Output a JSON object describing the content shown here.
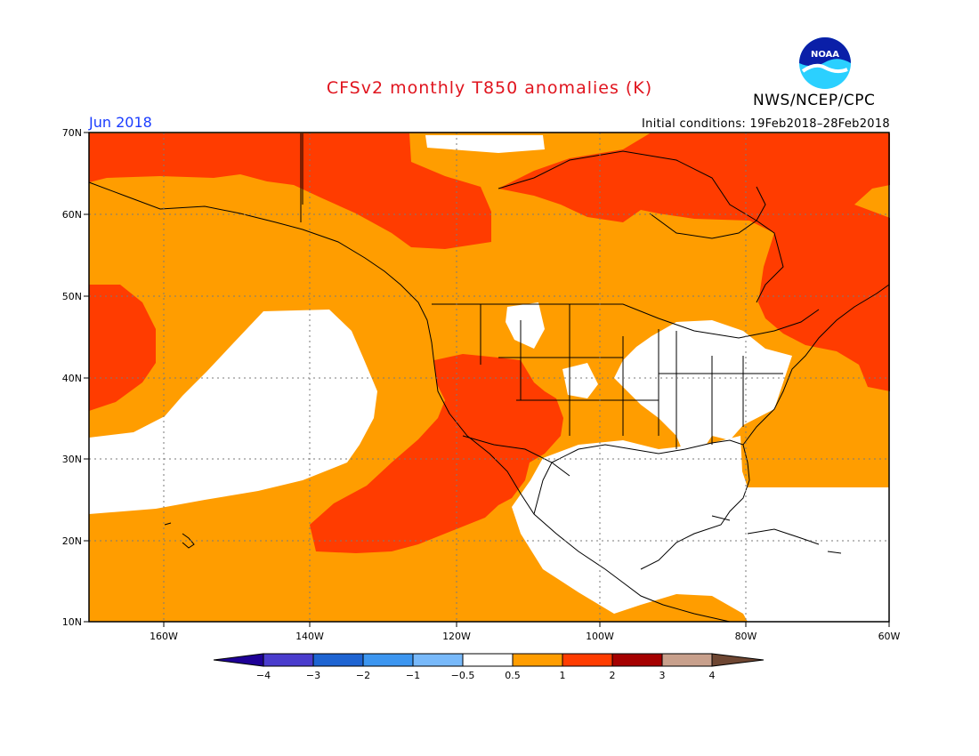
{
  "header": {
    "title": "CFSv2 monthly T850 anomalies (K)",
    "org": "NWS/NCEP/CPC",
    "logo_text": "NOAA",
    "month": "Jun 2018",
    "initial_conditions": "Initial conditions: 19Feb2018–28Feb2018"
  },
  "map": {
    "lat_labels": [
      "70N",
      "60N",
      "50N",
      "40N",
      "30N",
      "20N",
      "10N"
    ],
    "lon_labels": [
      "160W",
      "140W",
      "120W",
      "100W",
      "80W",
      "60W"
    ],
    "extent": {
      "lon": [
        -170,
        -60
      ],
      "lat": [
        10,
        70
      ]
    },
    "colors": {
      "white": "#ffffff",
      "orange": "#ff9d00",
      "red_orange": "#ff3c00"
    }
  },
  "colorbar": {
    "labels": [
      "−4",
      "−3",
      "−2",
      "−1",
      "−0.5",
      "0.5",
      "1",
      "2",
      "3",
      "4"
    ],
    "colors": [
      "#1e0096",
      "#4a3ccd",
      "#1e64d2",
      "#3c96f0",
      "#78b9fa",
      "#ffffff",
      "#ff9d00",
      "#ff3c00",
      "#a50000",
      "#c8a08c",
      "#6e4632"
    ]
  }
}
